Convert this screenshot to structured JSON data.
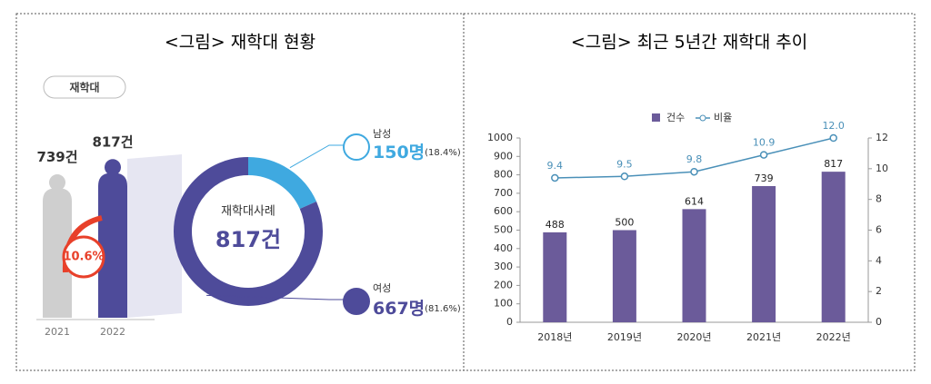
{
  "chart_data": [
    {
      "type": "figure",
      "title": "<그림> 재학대 현황",
      "badge": "재학대",
      "categories": [
        "2021",
        "2022"
      ],
      "values": [
        739,
        817
      ],
      "value_labels": [
        "739건",
        "817건"
      ],
      "colors": [
        "#cfcfcf",
        "#4e4b9a"
      ],
      "annotation": "10.6%"
    },
    {
      "type": "donut",
      "center_label": "재학대사례",
      "total": 817,
      "total_label": "817건",
      "categories": [
        "남성",
        "여성"
      ],
      "values": [
        150,
        667
      ],
      "value_labels": [
        "150명",
        "667명"
      ],
      "shares": [
        18.4,
        81.6
      ],
      "share_labels": [
        "(18.4%)",
        "(81.6%)"
      ],
      "colors": [
        "#3fa9e0",
        "#4e4b9a"
      ]
    },
    {
      "type": "combo",
      "title": "<그림> 최근 5년간 재학대 추이",
      "categories": [
        "2018년",
        "2019년",
        "2020년",
        "2021년",
        "2022년"
      ],
      "series": [
        {
          "name": "건수",
          "type": "bar",
          "color": "#6b5b9a",
          "values": [
            488,
            500,
            614,
            739,
            817
          ]
        },
        {
          "name": "비율",
          "type": "line",
          "axis": "y2",
          "color": "#4a90b8",
          "values": [
            9.4,
            9.5,
            9.8,
            10.9,
            12
          ],
          "value_labels": [
            "9.4",
            "9.5",
            "9.8",
            "10.9",
            "12.0"
          ]
        }
      ],
      "ylim": [
        0,
        1000
      ],
      "yticks": [
        0,
        100,
        200,
        300,
        400,
        500,
        600,
        700,
        800,
        900,
        1000
      ],
      "y2lim": [
        0,
        12
      ],
      "y2ticks": [
        0,
        2,
        4,
        6,
        8,
        10,
        12
      ]
    }
  ]
}
